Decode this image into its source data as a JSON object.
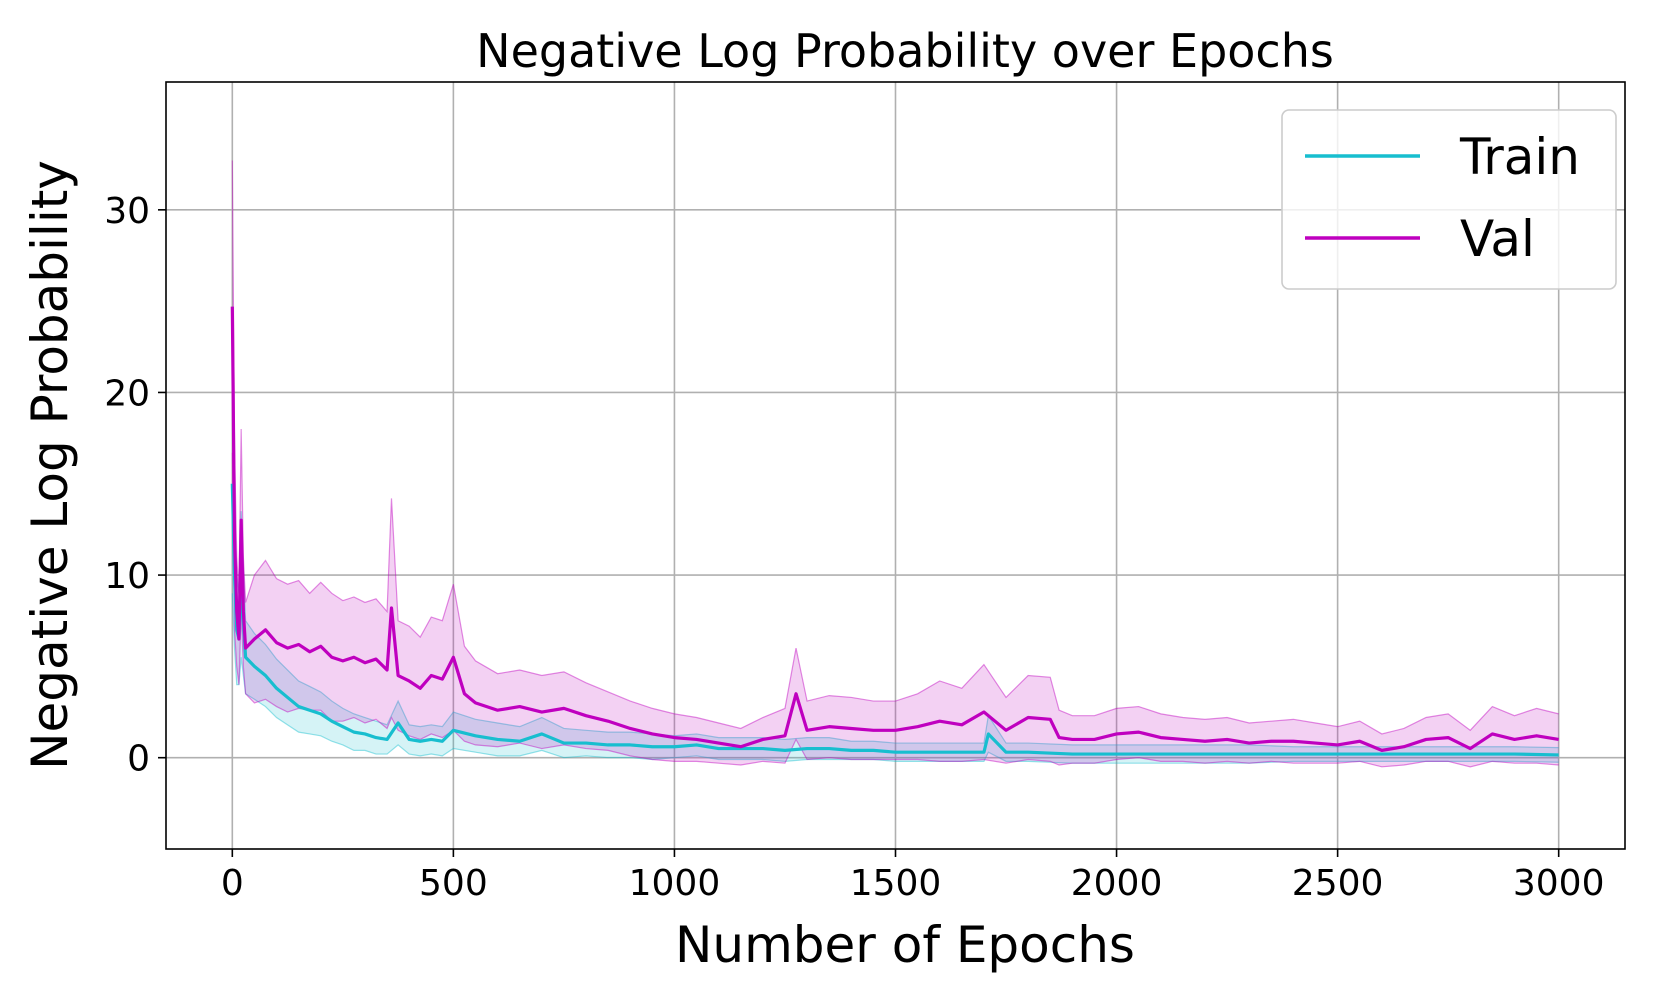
{
  "chart_data": {
    "type": "line",
    "title": "Negative Log Probability over Epochs",
    "xlabel": "Number of Epochs",
    "ylabel": "Negative Log Probability",
    "xlim": [
      -150,
      3150
    ],
    "ylim": [
      -5,
      37
    ],
    "xticks": [
      0,
      500,
      1000,
      1500,
      2000,
      2500,
      3000
    ],
    "yticks": [
      0,
      10,
      20,
      30
    ],
    "grid": true,
    "legend_position": "top-right",
    "band_description": "shaded band and thin traces show run-to-run spread around each mean line",
    "series": [
      {
        "name": "Train",
        "color": "#17becf",
        "x": [
          0,
          5,
          10,
          15,
          20,
          25,
          30,
          50,
          75,
          100,
          125,
          150,
          175,
          200,
          225,
          250,
          275,
          300,
          325,
          350,
          375,
          400,
          425,
          450,
          475,
          500,
          550,
          600,
          650,
          700,
          750,
          800,
          850,
          900,
          950,
          1000,
          1050,
          1100,
          1150,
          1200,
          1250,
          1300,
          1350,
          1400,
          1450,
          1500,
          1600,
          1700,
          1710,
          1750,
          1800,
          1900,
          2000,
          2100,
          2200,
          2300,
          2400,
          2500,
          2600,
          2700,
          2800,
          2900,
          3000
        ],
        "values": [
          15,
          10,
          7,
          6.5,
          9.5,
          7.5,
          5.5,
          5,
          4.5,
          3.8,
          3.3,
          2.8,
          2.6,
          2.4,
          2.0,
          1.7,
          1.4,
          1.3,
          1.1,
          1.0,
          1.9,
          1.0,
          0.9,
          1.0,
          0.9,
          1.5,
          1.2,
          1.0,
          0.9,
          1.3,
          0.8,
          0.8,
          0.7,
          0.7,
          0.6,
          0.6,
          0.7,
          0.5,
          0.5,
          0.5,
          0.4,
          0.5,
          0.5,
          0.4,
          0.4,
          0.3,
          0.3,
          0.3,
          1.3,
          0.3,
          0.3,
          0.2,
          0.2,
          0.2,
          0.2,
          0.2,
          0.2,
          0.2,
          0.2,
          0.2,
          0.2,
          0.2,
          0.15
        ],
        "band_spread": [
          6,
          4,
          3,
          2.5,
          4,
          3,
          2,
          1.8,
          1.7,
          1.6,
          1.5,
          1.4,
          1.3,
          1.2,
          1.1,
          1.0,
          1.0,
          0.9,
          0.9,
          0.8,
          1.2,
          0.8,
          0.8,
          0.8,
          0.8,
          1.0,
          0.9,
          0.9,
          0.8,
          0.9,
          0.8,
          0.7,
          0.7,
          0.7,
          0.7,
          0.6,
          0.6,
          0.6,
          0.6,
          0.6,
          0.6,
          0.6,
          0.6,
          0.5,
          0.5,
          0.5,
          0.5,
          0.5,
          1.0,
          0.5,
          0.5,
          0.5,
          0.5,
          0.5,
          0.5,
          0.5,
          0.4,
          0.4,
          0.4,
          0.4,
          0.4,
          0.4,
          0.4
        ]
      },
      {
        "name": "Val",
        "color": "#bf00bf",
        "x": [
          0,
          5,
          10,
          15,
          20,
          25,
          30,
          50,
          75,
          100,
          125,
          150,
          175,
          200,
          225,
          250,
          275,
          300,
          325,
          350,
          360,
          375,
          400,
          425,
          450,
          475,
          500,
          525,
          550,
          600,
          650,
          700,
          750,
          800,
          850,
          900,
          950,
          1000,
          1050,
          1100,
          1150,
          1200,
          1250,
          1275,
          1300,
          1350,
          1400,
          1450,
          1500,
          1550,
          1600,
          1650,
          1700,
          1750,
          1800,
          1850,
          1870,
          1900,
          1950,
          2000,
          2050,
          2100,
          2150,
          2200,
          2250,
          2300,
          2350,
          2400,
          2450,
          2500,
          2550,
          2600,
          2650,
          2700,
          2750,
          2800,
          2850,
          2900,
          2950,
          3000
        ],
        "values": [
          24.7,
          12,
          8,
          6.5,
          13,
          8,
          6,
          6.5,
          7,
          6.3,
          6,
          6.2,
          5.8,
          6.1,
          5.5,
          5.3,
          5.5,
          5.2,
          5.4,
          4.8,
          8.2,
          4.5,
          4.2,
          3.8,
          4.5,
          4.3,
          5.5,
          3.5,
          3.0,
          2.6,
          2.8,
          2.5,
          2.7,
          2.3,
          2.0,
          1.6,
          1.3,
          1.1,
          1.0,
          0.8,
          0.6,
          1.0,
          1.2,
          3.5,
          1.5,
          1.7,
          1.6,
          1.5,
          1.5,
          1.7,
          2.0,
          1.8,
          2.5,
          1.5,
          2.2,
          2.1,
          1.1,
          1.0,
          1.0,
          1.3,
          1.4,
          1.1,
          1.0,
          0.9,
          1.0,
          0.8,
          0.9,
          0.9,
          0.8,
          0.7,
          0.9,
          0.4,
          0.6,
          1.0,
          1.1,
          0.5,
          1.3,
          1.0,
          1.2,
          1.0
        ],
        "band_spread": [
          8,
          5,
          3,
          2.5,
          5,
          3,
          2.5,
          3.5,
          3.8,
          3.5,
          3.5,
          3.5,
          3.2,
          3.5,
          3.5,
          3.3,
          3.3,
          3.3,
          3.3,
          3.2,
          6,
          3.0,
          3.0,
          2.8,
          3.2,
          3.2,
          4,
          2.6,
          2.3,
          2.0,
          2.0,
          2.0,
          2.0,
          1.8,
          1.6,
          1.5,
          1.4,
          1.3,
          1.2,
          1.1,
          1.0,
          1.2,
          1.5,
          2.5,
          1.6,
          1.7,
          1.7,
          1.6,
          1.6,
          1.8,
          2.2,
          2.0,
          2.6,
          1.8,
          2.3,
          2.3,
          1.5,
          1.3,
          1.3,
          1.4,
          1.4,
          1.3,
          1.2,
          1.2,
          1.2,
          1.1,
          1.1,
          1.2,
          1.1,
          1.0,
          1.1,
          0.9,
          1.0,
          1.2,
          1.3,
          1.0,
          1.5,
          1.3,
          1.5,
          1.4
        ]
      }
    ]
  }
}
